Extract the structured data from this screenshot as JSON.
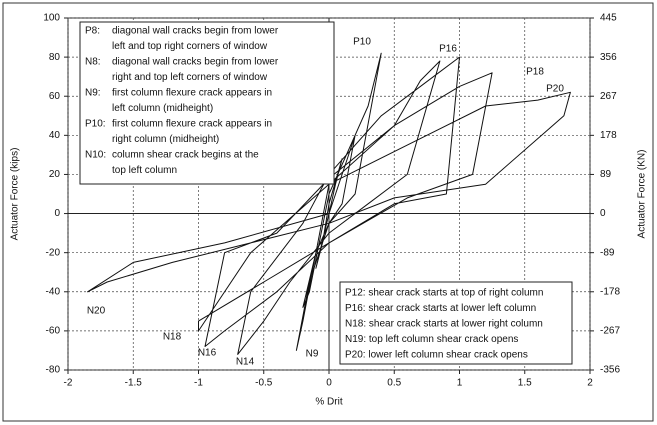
{
  "chart_data": {
    "type": "line",
    "x_label": "% Drit",
    "y_label": "Actuator Force (kips)",
    "y2_label": "Actuator Force (KN)",
    "xlim": [
      -2,
      2
    ],
    "ylim": [
      -80,
      100
    ],
    "y2lim": [
      -356,
      445
    ],
    "xticks": [
      -2,
      -1.5,
      -1,
      -0.5,
      0,
      0.5,
      1,
      1.5,
      2
    ],
    "yticks": [
      -80,
      -60,
      -40,
      -20,
      0,
      20,
      40,
      60,
      80,
      100
    ],
    "y2ticks": [
      -356,
      -267,
      -178,
      -89,
      0,
      89,
      178,
      267,
      356,
      445
    ],
    "grid": true,
    "series": [
      {
        "color": "#111111",
        "x": [
          0,
          0.05,
          0.1,
          0,
          -0.05,
          -0.1,
          0,
          0.15,
          0.2,
          0.1,
          0,
          -0.1,
          -0.2,
          -0.15,
          0,
          0.3,
          0.4,
          0.2,
          0,
          -0.15,
          -0.25,
          -0.2,
          0,
          0.5,
          0.7,
          0.85,
          0.6,
          0.3,
          0,
          -0.3,
          -0.5,
          -0.7,
          -0.6,
          -0.2,
          0,
          0.4,
          0.8,
          1.0,
          0.9,
          0.5,
          0,
          -0.4,
          -0.8,
          -0.95,
          -0.8,
          -0.4,
          0,
          0.5,
          1.0,
          1.25,
          1.1,
          0.6,
          0,
          -0.5,
          -1.0,
          -1.0,
          -0.6,
          0,
          0.6,
          1.2,
          1.6,
          1.85,
          1.8,
          1.2,
          0.5,
          0,
          -0.6,
          -1.2,
          -1.7,
          -1.85,
          -1.5,
          -0.8,
          0
        ],
        "values": [
          0,
          15,
          28,
          5,
          -15,
          -28,
          0,
          30,
          40,
          5,
          -5,
          -20,
          -48,
          -40,
          10,
          55,
          82,
          10,
          -5,
          -35,
          -70,
          -55,
          15,
          45,
          68,
          78,
          20,
          5,
          -10,
          -35,
          -55,
          -72,
          -40,
          -5,
          20,
          50,
          70,
          80,
          10,
          5,
          -15,
          -40,
          -60,
          -68,
          -20,
          -10,
          18,
          45,
          65,
          72,
          20,
          8,
          -15,
          -35,
          -55,
          -60,
          -20,
          15,
          35,
          55,
          58,
          62,
          50,
          15,
          8,
          -5,
          -15,
          -25,
          -35,
          -40,
          -25,
          -15,
          0
        ]
      }
    ],
    "annotations": [
      "P10",
      "P16",
      "P18",
      "P20",
      "N20",
      "N18",
      "N16",
      "N14",
      "N9"
    ],
    "notes_top": [
      {
        "key": "P8:",
        "lines": [
          "diagonal wall cracks begin from lower",
          "left and top right corners of window"
        ]
      },
      {
        "key": "N8:",
        "lines": [
          "diagonal wall cracks begin from lower",
          "right and top left corners of window"
        ]
      },
      {
        "key": "N9:",
        "lines": [
          "first column flexure crack appears in",
          "left column (midheight)"
        ]
      },
      {
        "key": "P10:",
        "lines": [
          "first column flexure crack appears in",
          "right column (midheight)"
        ]
      },
      {
        "key": "N10:",
        "lines": [
          "column shear crack begins at the",
          "top left column"
        ]
      }
    ],
    "notes_bottom": [
      "P12: shear crack starts at top of right column",
      "P16: shear crack starts at lower left column",
      "N18: shear crack starts at lower right column",
      "N19: top left column shear crack opens",
      "P20: lower left column shear crack opens"
    ]
  }
}
